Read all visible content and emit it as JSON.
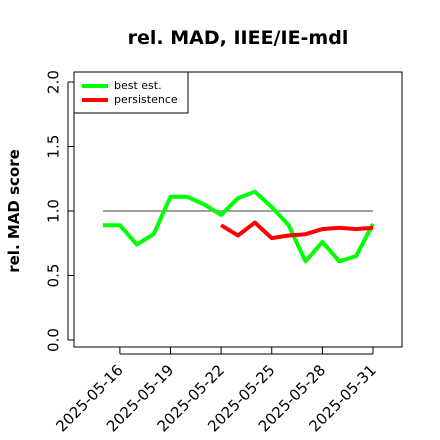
{
  "chart_data": {
    "type": "line",
    "title": "rel. MAD, IIEE/IE-mdl",
    "ylabel": "rel. MAD score",
    "xlabel": "",
    "ylim": [
      0,
      2
    ],
    "yticks": [
      "0.0",
      "0.5",
      "1.0",
      "1.5",
      "2.0"
    ],
    "xticks": [
      "2025-05-16",
      "2025-05-19",
      "2025-05-22",
      "2025-05-25",
      "2025-05-28",
      "2025-05-31"
    ],
    "reference_line": 1.0,
    "legend_position": "top-left",
    "series": [
      {
        "name": "best est.",
        "color": "#00ff00",
        "x": [
          "2025-05-15",
          "2025-05-16",
          "2025-05-17",
          "2025-05-18",
          "2025-05-19",
          "2025-05-20",
          "2025-05-21",
          "2025-05-22",
          "2025-05-23",
          "2025-05-24",
          "2025-05-25",
          "2025-05-26",
          "2025-05-27",
          "2025-05-28",
          "2025-05-29",
          "2025-05-30",
          "2025-05-31"
        ],
        "values": [
          0.89,
          0.89,
          0.74,
          0.82,
          1.11,
          1.11,
          1.05,
          0.97,
          1.1,
          1.15,
          1.03,
          0.89,
          0.61,
          0.76,
          0.61,
          0.65,
          0.9
        ]
      },
      {
        "name": "persistence",
        "color": "#ff0000",
        "x": [
          "2025-05-22",
          "2025-05-23",
          "2025-05-24",
          "2025-05-25",
          "2025-05-26",
          "2025-05-27",
          "2025-05-28",
          "2025-05-29",
          "2025-05-30",
          "2025-05-31"
        ],
        "values": [
          0.89,
          0.81,
          0.91,
          0.79,
          0.81,
          0.82,
          0.86,
          0.87,
          0.86,
          0.87
        ]
      }
    ]
  }
}
